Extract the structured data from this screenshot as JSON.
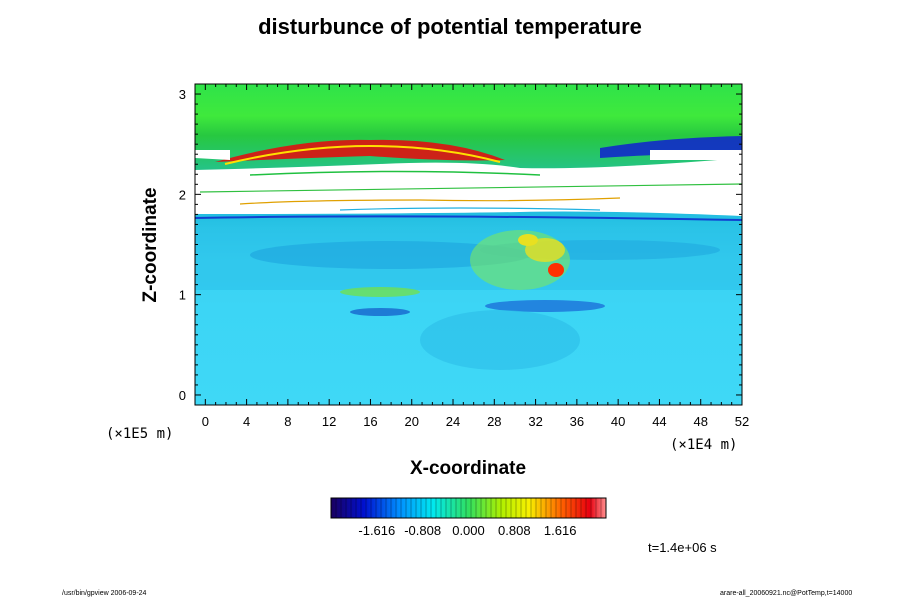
{
  "chart_data": {
    "type": "heatmap",
    "title": "disturbunce of potential temperature",
    "xlabel": "X-coordinate",
    "ylabel": "Z-coordinate",
    "x_unit": "(×1E4 m)",
    "y_unit": "(×1E5 m)",
    "x_ticks": [
      "0",
      "4",
      "8",
      "12",
      "16",
      "20",
      "24",
      "28",
      "32",
      "36",
      "40",
      "44",
      "48",
      "52"
    ],
    "y_ticks": [
      "0",
      "1",
      "2",
      "3"
    ],
    "xlim": [
      -1,
      52
    ],
    "ylim": [
      -0.1,
      3.1
    ],
    "colorbar": {
      "tick_labels": [
        "-1.616",
        "-0.808",
        "0.000",
        "0.808",
        "1.616"
      ],
      "range": [
        -2.424,
        2.424
      ]
    },
    "annotation": "t=1.4e+06 s",
    "colors": {
      "background_low": "#3cd2f0",
      "band_green": "#46e646",
      "saturated": "#ffffff"
    }
  },
  "footer": {
    "left": "/usr/bin/gpview 2006-09-24",
    "right": "arare-all_20060921.nc@PotTemp,t=14000"
  }
}
